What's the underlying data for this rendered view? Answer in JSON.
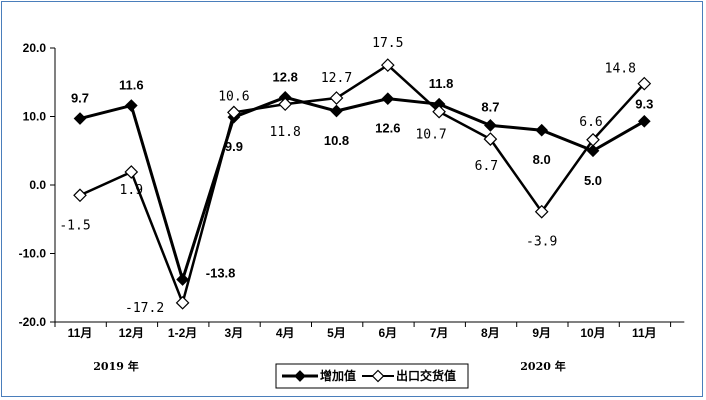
{
  "chart_data": {
    "type": "line",
    "categories": [
      "11月",
      "12月",
      "1-2月",
      "3月",
      "4月",
      "5月",
      "6月",
      "7月",
      "8月",
      "9月",
      "10月",
      "11月"
    ],
    "series": [
      {
        "name": "增加值",
        "values": [
          9.7,
          11.6,
          -13.8,
          9.9,
          12.8,
          10.8,
          12.6,
          11.8,
          8.7,
          8.0,
          5.0,
          9.3
        ],
        "labels": [
          "9.7",
          "11.6",
          "-13.8",
          "9.9",
          "12.8",
          "10.8",
          "12.6",
          "11.8",
          "8.7",
          "8.0",
          "5.0",
          "9.3"
        ],
        "color": "#000000",
        "marker": "filled-diamond"
      },
      {
        "name": "出口交货值",
        "values": [
          -1.5,
          1.9,
          -17.2,
          10.6,
          11.8,
          12.7,
          17.5,
          10.7,
          6.7,
          -3.9,
          6.6,
          14.8
        ],
        "labels": [
          "-1.5",
          "1.9",
          "-17.2",
          "10.6",
          "11.8",
          "12.7",
          "17.5",
          "10.7",
          "6.7",
          "-3.9",
          "6.6",
          "14.8"
        ],
        "color": "#000000",
        "marker": "hollow-diamond"
      }
    ],
    "y_ticks": [
      "20.0",
      "10.0",
      "0.0",
      "-10.0",
      "-20.0"
    ],
    "ylim": [
      -20,
      20
    ],
    "year_labels": [
      "2019 年",
      "2020 年"
    ],
    "legend_position": "bottom-center",
    "grid": false
  }
}
